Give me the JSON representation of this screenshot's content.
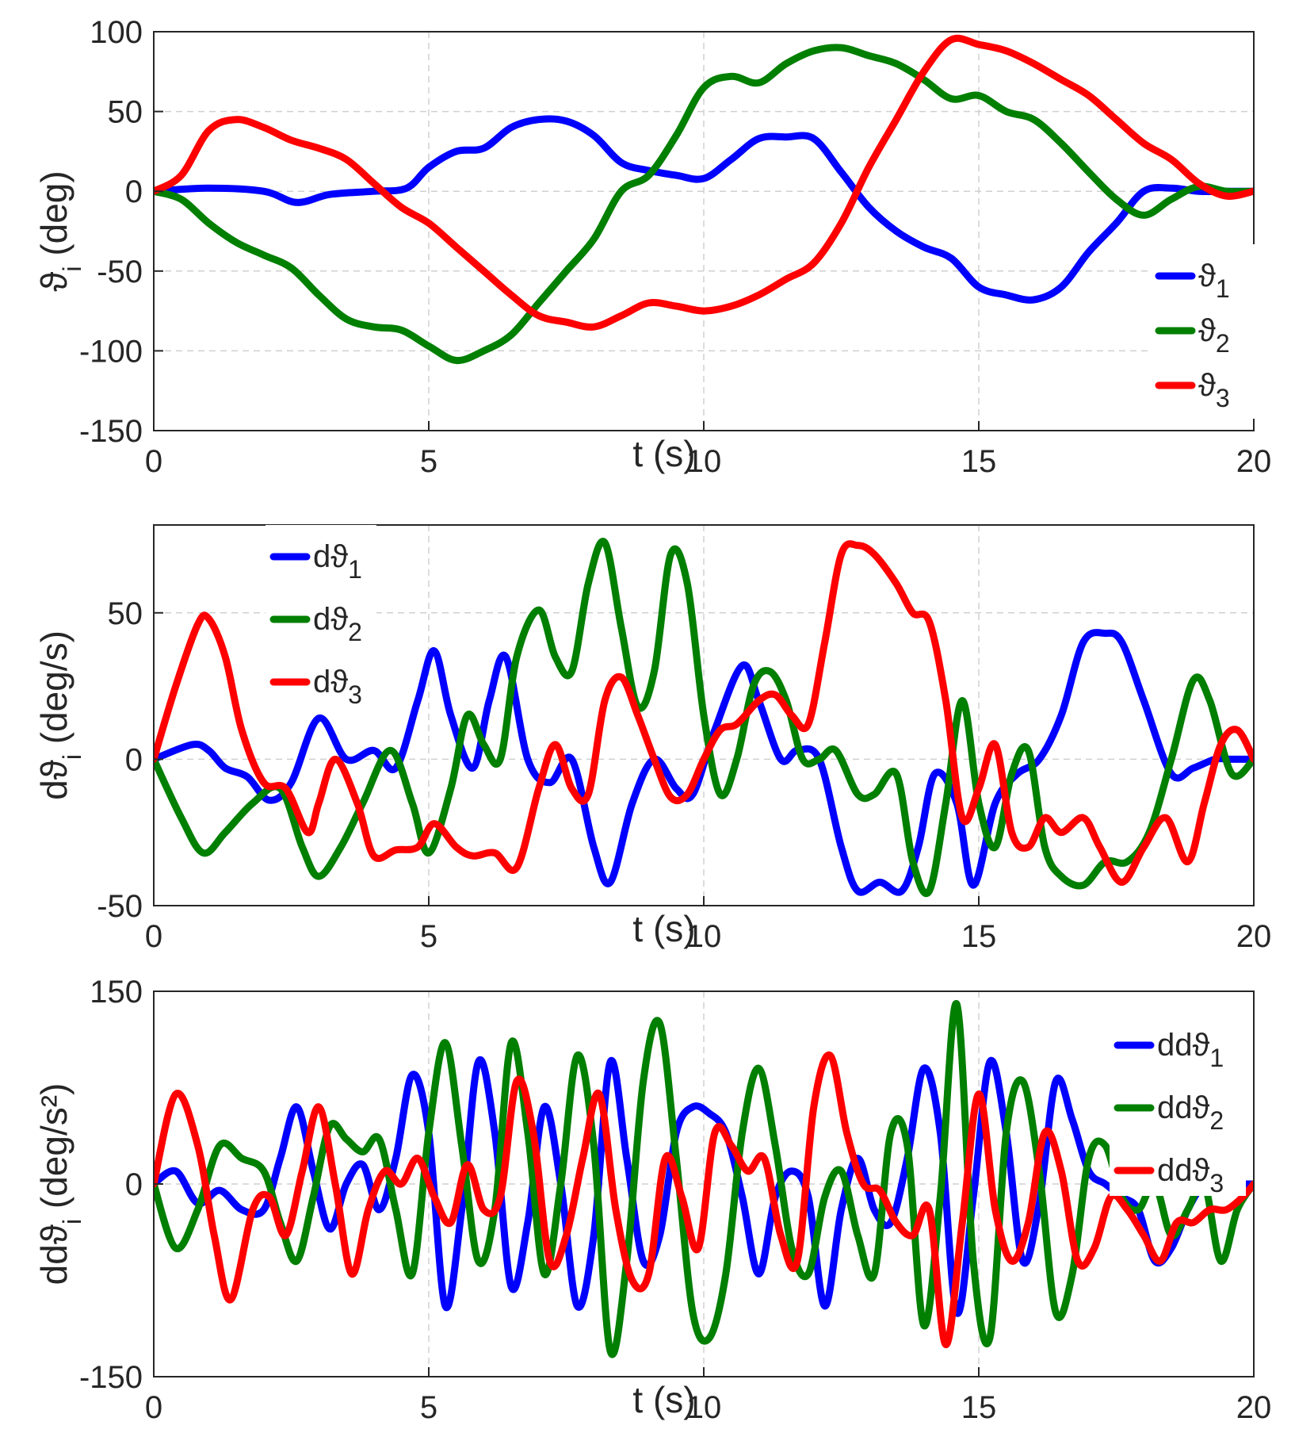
{
  "chart_data": [
    {
      "type": "line",
      "xlabel": "t (s)",
      "ylabel": "ϑ_i (deg)",
      "xlim": [
        0,
        20
      ],
      "ylim": [
        -150,
        100
      ],
      "xticks": [
        "0",
        "5",
        "10",
        "15",
        "20"
      ],
      "yticks": [
        "100",
        "50",
        "0",
        "-50",
        "-100",
        "-150"
      ],
      "legend_position": "right",
      "series": [
        {
          "name": "ϑ1",
          "color": "#0000ff",
          "x": [
            0,
            1,
            2,
            2.6,
            3.2,
            4,
            4.6,
            5,
            5.5,
            6,
            6.5,
            7,
            7.5,
            8,
            8.5,
            9,
            9.5,
            10,
            10.5,
            11,
            11.5,
            12,
            12.5,
            13,
            13.5,
            14,
            14.5,
            15,
            15.5,
            16,
            16.5,
            17,
            17.5,
            18,
            18.5,
            19,
            19.5,
            20
          ],
          "y": [
            0,
            2,
            0,
            -7,
            -2,
            0,
            2,
            15,
            25,
            27,
            40,
            45,
            44,
            35,
            18,
            13,
            10,
            8,
            20,
            33,
            34,
            33,
            12,
            -10,
            -25,
            -35,
            -42,
            -60,
            -65,
            -68,
            -60,
            -38,
            -20,
            0,
            2,
            0,
            0,
            0
          ]
        },
        {
          "name": "ϑ2",
          "color": "#007f00",
          "x": [
            0,
            0.5,
            1,
            1.5,
            2,
            2.5,
            3,
            3.5,
            4,
            4.5,
            5,
            5.5,
            6,
            6.5,
            7,
            7.5,
            8,
            8.5,
            9,
            9.5,
            10,
            10.5,
            11,
            11.5,
            12,
            12.5,
            13,
            13.5,
            14,
            14.5,
            15,
            15.5,
            16,
            16.5,
            17,
            17.5,
            18,
            18.5,
            19,
            19.5,
            20
          ],
          "y": [
            0,
            -5,
            -20,
            -32,
            -40,
            -48,
            -65,
            -80,
            -85,
            -87,
            -97,
            -106,
            -100,
            -90,
            -70,
            -50,
            -30,
            0,
            10,
            35,
            65,
            72,
            68,
            80,
            88,
            90,
            85,
            80,
            70,
            58,
            60,
            50,
            45,
            30,
            12,
            -5,
            -15,
            -5,
            3,
            0,
            0
          ]
        },
        {
          "name": "ϑ3",
          "color": "#ff0000",
          "x": [
            0,
            0.5,
            1,
            1.5,
            2,
            2.5,
            3,
            3.5,
            4,
            4.5,
            5,
            5.5,
            6,
            6.5,
            7,
            7.5,
            8,
            8.5,
            9,
            9.5,
            10,
            10.5,
            11,
            11.5,
            12,
            12.5,
            13,
            13.5,
            14,
            14.5,
            15,
            15.5,
            16,
            16.5,
            17,
            17.5,
            18,
            18.5,
            19,
            19.5,
            20
          ],
          "y": [
            0,
            10,
            38,
            45,
            40,
            32,
            27,
            20,
            5,
            -10,
            -20,
            -35,
            -50,
            -65,
            -78,
            -82,
            -85,
            -78,
            -70,
            -72,
            -75,
            -72,
            -65,
            -55,
            -45,
            -20,
            15,
            45,
            75,
            95,
            92,
            88,
            80,
            70,
            60,
            45,
            30,
            20,
            5,
            -3,
            0
          ]
        },
        {
          "name": "ϑ3",
          "color": "#ff0000",
          "x": [],
          "y": []
        }
      ]
    },
    {
      "type": "line",
      "xlabel": "t (s)",
      "ylabel": "dϑ_i (deg/s)",
      "xlim": [
        0,
        20
      ],
      "ylim": [
        -50,
        80
      ],
      "xticks": [
        "0",
        "5",
        "10",
        "15",
        "20"
      ],
      "yticks": [
        "50",
        "0",
        "-50"
      ],
      "legend_position": "top-left",
      "series": [
        {
          "name": "dϑ1",
          "color": "#0000ff",
          "x": [
            0,
            0.7,
            1,
            1.3,
            1.7,
            2.1,
            2.5,
            3,
            3.5,
            4,
            4.4,
            4.8,
            5.1,
            5.4,
            5.8,
            6.1,
            6.4,
            6.8,
            7.2,
            7.6,
            8,
            8.3,
            8.7,
            9.1,
            9.5,
            9.8,
            10.2,
            10.7,
            11,
            11.4,
            11.7,
            12.1,
            12.5,
            12.8,
            13.2,
            13.6,
            13.9,
            14.2,
            14.6,
            14.9,
            15.3,
            15.7,
            16.1,
            16.5,
            16.9,
            17.3,
            17.6,
            18,
            18.5,
            18.9,
            19.3,
            19.6,
            20
          ],
          "y": [
            0,
            5,
            3,
            -3,
            -6,
            -14,
            -8,
            14,
            0,
            3,
            -3,
            20,
            37,
            15,
            -3,
            20,
            35,
            0,
            -8,
            0,
            -30,
            -42,
            -15,
            0,
            -10,
            -12,
            10,
            32,
            20,
            0,
            3,
            0,
            -30,
            -45,
            -42,
            -45,
            -30,
            -5,
            -15,
            -43,
            -15,
            -5,
            0,
            15,
            40,
            43,
            40,
            20,
            -5,
            -3,
            0,
            0,
            0
          ]
        },
        {
          "name": "dϑ2",
          "color": "#007f00",
          "x": [
            0,
            0.5,
            0.9,
            1.3,
            1.8,
            2.3,
            2.7,
            3,
            3.4,
            3.8,
            4.3,
            4.7,
            5,
            5.4,
            5.7,
            6,
            6.3,
            6.6,
            7,
            7.3,
            7.6,
            7.9,
            8.2,
            8.5,
            8.8,
            9.1,
            9.4,
            9.7,
            10,
            10.3,
            10.6,
            10.9,
            11.2,
            11.5,
            11.8,
            12.1,
            12.4,
            12.8,
            13.1,
            13.5,
            13.8,
            14.1,
            14.4,
            14.7,
            15,
            15.3,
            15.6,
            15.9,
            16.2,
            16.5,
            16.9,
            17.3,
            17.7,
            18.1,
            18.5,
            18.9,
            19.2,
            19.6,
            20
          ],
          "y": [
            0,
            -20,
            -32,
            -25,
            -15,
            -10,
            -30,
            -40,
            -30,
            -15,
            3,
            -15,
            -32,
            -10,
            15,
            5,
            0,
            35,
            51,
            35,
            30,
            60,
            74,
            45,
            18,
            30,
            70,
            60,
            15,
            -12,
            0,
            25,
            30,
            20,
            0,
            0,
            3,
            -12,
            -12,
            -5,
            -35,
            -45,
            -15,
            20,
            -15,
            -30,
            -5,
            3,
            -30,
            -40,
            -43,
            -35,
            -35,
            -25,
            0,
            27,
            20,
            -5,
            0
          ]
        },
        {
          "name": "dϑ3",
          "color": "#ff0000",
          "x": [
            0,
            0.4,
            0.8,
            1,
            1.3,
            1.6,
            2,
            2.4,
            2.8,
            3,
            3.3,
            3.7,
            4,
            4.4,
            4.8,
            5.1,
            5.5,
            5.8,
            6.2,
            6.6,
            7,
            7.3,
            7.6,
            7.9,
            8.2,
            8.5,
            8.8,
            9.1,
            9.4,
            9.7,
            10,
            10.3,
            10.6,
            11,
            11.3,
            11.6,
            11.9,
            12.2,
            12.5,
            12.8,
            13.1,
            13.5,
            13.8,
            14.1,
            14.4,
            14.7,
            15,
            15.3,
            15.6,
            15.9,
            16.2,
            16.5,
            16.9,
            17.2,
            17.6,
            18,
            18.4,
            18.8,
            19.1,
            19.4,
            19.7,
            20
          ],
          "y": [
            0,
            25,
            46,
            48,
            35,
            10,
            -8,
            -10,
            -25,
            -15,
            0,
            -15,
            -33,
            -31,
            -30,
            -22,
            -30,
            -33,
            -32,
            -37,
            -10,
            5,
            -10,
            -12,
            20,
            28,
            15,
            0,
            -13,
            -12,
            0,
            10,
            12,
            20,
            22,
            15,
            12,
            40,
            70,
            73,
            70,
            60,
            50,
            47,
            20,
            -20,
            -10,
            5,
            -25,
            -30,
            -20,
            -25,
            -20,
            -30,
            -42,
            -30,
            -20,
            -35,
            -15,
            5,
            10,
            0
          ]
        }
      ]
    },
    {
      "type": "line",
      "xlabel": "t (s)",
      "ylabel": "ddϑ_i (deg/s²)",
      "xlim": [
        0,
        20
      ],
      "ylim": [
        -150,
        150
      ],
      "xticks": [
        "0",
        "5",
        "10",
        "15",
        "20"
      ],
      "yticks": [
        "150",
        "0",
        "-150"
      ],
      "legend_position": "top-right",
      "series": [
        {
          "name": "ddϑ1",
          "color": "#0000ff",
          "x": [
            0,
            0.4,
            0.8,
            1.2,
            1.6,
            2,
            2.3,
            2.6,
            2.9,
            3.2,
            3.5,
            3.8,
            4.1,
            4.4,
            4.7,
            5,
            5.3,
            5.6,
            5.9,
            6.2,
            6.5,
            6.8,
            7.1,
            7.4,
            7.7,
            8,
            8.3,
            8.6,
            8.9,
            9.2,
            9.5,
            9.8,
            10.1,
            10.4,
            10.7,
            11,
            11.3,
            11.6,
            11.9,
            12.2,
            12.5,
            12.8,
            13.1,
            13.4,
            13.7,
            14,
            14.3,
            14.6,
            14.9,
            15.2,
            15.5,
            15.8,
            16.1,
            16.4,
            16.7,
            17,
            17.3,
            17.6,
            17.9,
            18.2,
            18.5,
            18.8,
            19.1,
            19.4,
            19.7,
            20
          ],
          "y": [
            0,
            10,
            -15,
            -5,
            -20,
            -20,
            20,
            60,
            10,
            -35,
            0,
            15,
            -20,
            20,
            85,
            40,
            -95,
            -20,
            95,
            40,
            -80,
            -30,
            60,
            0,
            -95,
            -40,
            95,
            20,
            -60,
            -40,
            40,
            60,
            55,
            40,
            -10,
            -70,
            -10,
            10,
            -10,
            -95,
            -20,
            20,
            -20,
            -30,
            20,
            90,
            40,
            -100,
            -10,
            95,
            40,
            -60,
            -15,
            80,
            50,
            10,
            0,
            -10,
            -20,
            -60,
            -50,
            -20,
            0,
            0,
            0,
            0
          ]
        },
        {
          "name": "ddϑ2",
          "color": "#007f00",
          "x": [
            0,
            0.4,
            0.8,
            1.2,
            1.6,
            2,
            2.3,
            2.6,
            2.9,
            3.2,
            3.5,
            3.8,
            4.1,
            4.4,
            4.7,
            5,
            5.3,
            5.6,
            5.9,
            6.2,
            6.5,
            6.8,
            7.1,
            7.4,
            7.7,
            8,
            8.3,
            8.6,
            8.9,
            9.2,
            9.5,
            9.8,
            10.1,
            10.4,
            10.7,
            11,
            11.3,
            11.6,
            11.9,
            12.2,
            12.5,
            12.8,
            13.1,
            13.4,
            13.7,
            14,
            14.3,
            14.6,
            14.9,
            15.2,
            15.5,
            15.8,
            16.1,
            16.4,
            16.7,
            17,
            17.3,
            17.6,
            17.9,
            18.2,
            18.5,
            18.8,
            19.1,
            19.4,
            19.7,
            20
          ],
          "y": [
            0,
            -50,
            -20,
            30,
            20,
            10,
            -30,
            -60,
            -10,
            45,
            35,
            25,
            35,
            -20,
            -70,
            40,
            110,
            30,
            -60,
            -20,
            110,
            40,
            -70,
            0,
            100,
            30,
            -130,
            -60,
            80,
            125,
            20,
            -100,
            -120,
            -70,
            40,
            90,
            30,
            -50,
            -70,
            -10,
            10,
            -40,
            -70,
            40,
            30,
            -110,
            -10,
            140,
            -60,
            -120,
            40,
            80,
            10,
            -100,
            -70,
            20,
            30,
            -10,
            -20,
            0,
            -40,
            -20,
            0,
            -60,
            -20,
            0
          ]
        },
        {
          "name": "ddϑ3",
          "color": "#ff0000",
          "x": [
            0,
            0.4,
            0.8,
            1.1,
            1.4,
            1.8,
            2.1,
            2.4,
            2.7,
            3,
            3.3,
            3.6,
            3.9,
            4.2,
            4.5,
            4.8,
            5.1,
            5.4,
            5.7,
            6,
            6.3,
            6.6,
            6.9,
            7.2,
            7.5,
            7.8,
            8.1,
            8.4,
            8.7,
            9,
            9.3,
            9.6,
            9.9,
            10.2,
            10.5,
            10.8,
            11.1,
            11.4,
            11.7,
            12,
            12.3,
            12.6,
            12.9,
            13.2,
            13.5,
            13.8,
            14.1,
            14.4,
            14.7,
            15,
            15.3,
            15.6,
            15.9,
            16.2,
            16.5,
            16.8,
            17.1,
            17.4,
            17.7,
            18,
            18.3,
            18.6,
            18.9,
            19.2,
            19.5,
            19.8,
            20
          ],
          "y": [
            0,
            70,
            30,
            -40,
            -90,
            -20,
            -10,
            -40,
            10,
            60,
            0,
            -70,
            -20,
            10,
            0,
            20,
            -10,
            -30,
            15,
            -20,
            -10,
            80,
            40,
            -60,
            -40,
            20,
            70,
            -20,
            -75,
            -70,
            20,
            -10,
            -50,
            40,
            30,
            10,
            20,
            -40,
            -60,
            60,
            100,
            40,
            0,
            -5,
            -30,
            -40,
            -20,
            -125,
            -30,
            70,
            -20,
            -60,
            -30,
            40,
            10,
            -60,
            -50,
            -10,
            -20,
            -40,
            -60,
            -30,
            -30,
            -20,
            -20,
            -10,
            0
          ]
        }
      ]
    }
  ],
  "legend": {
    "panel1": [
      "ϑ1",
      "ϑ2",
      "ϑ3"
    ],
    "panel2": [
      "dϑ1",
      "dϑ2",
      "dϑ3"
    ],
    "panel3": [
      "ddϑ1",
      "ddϑ2",
      "ddϑ3"
    ]
  }
}
